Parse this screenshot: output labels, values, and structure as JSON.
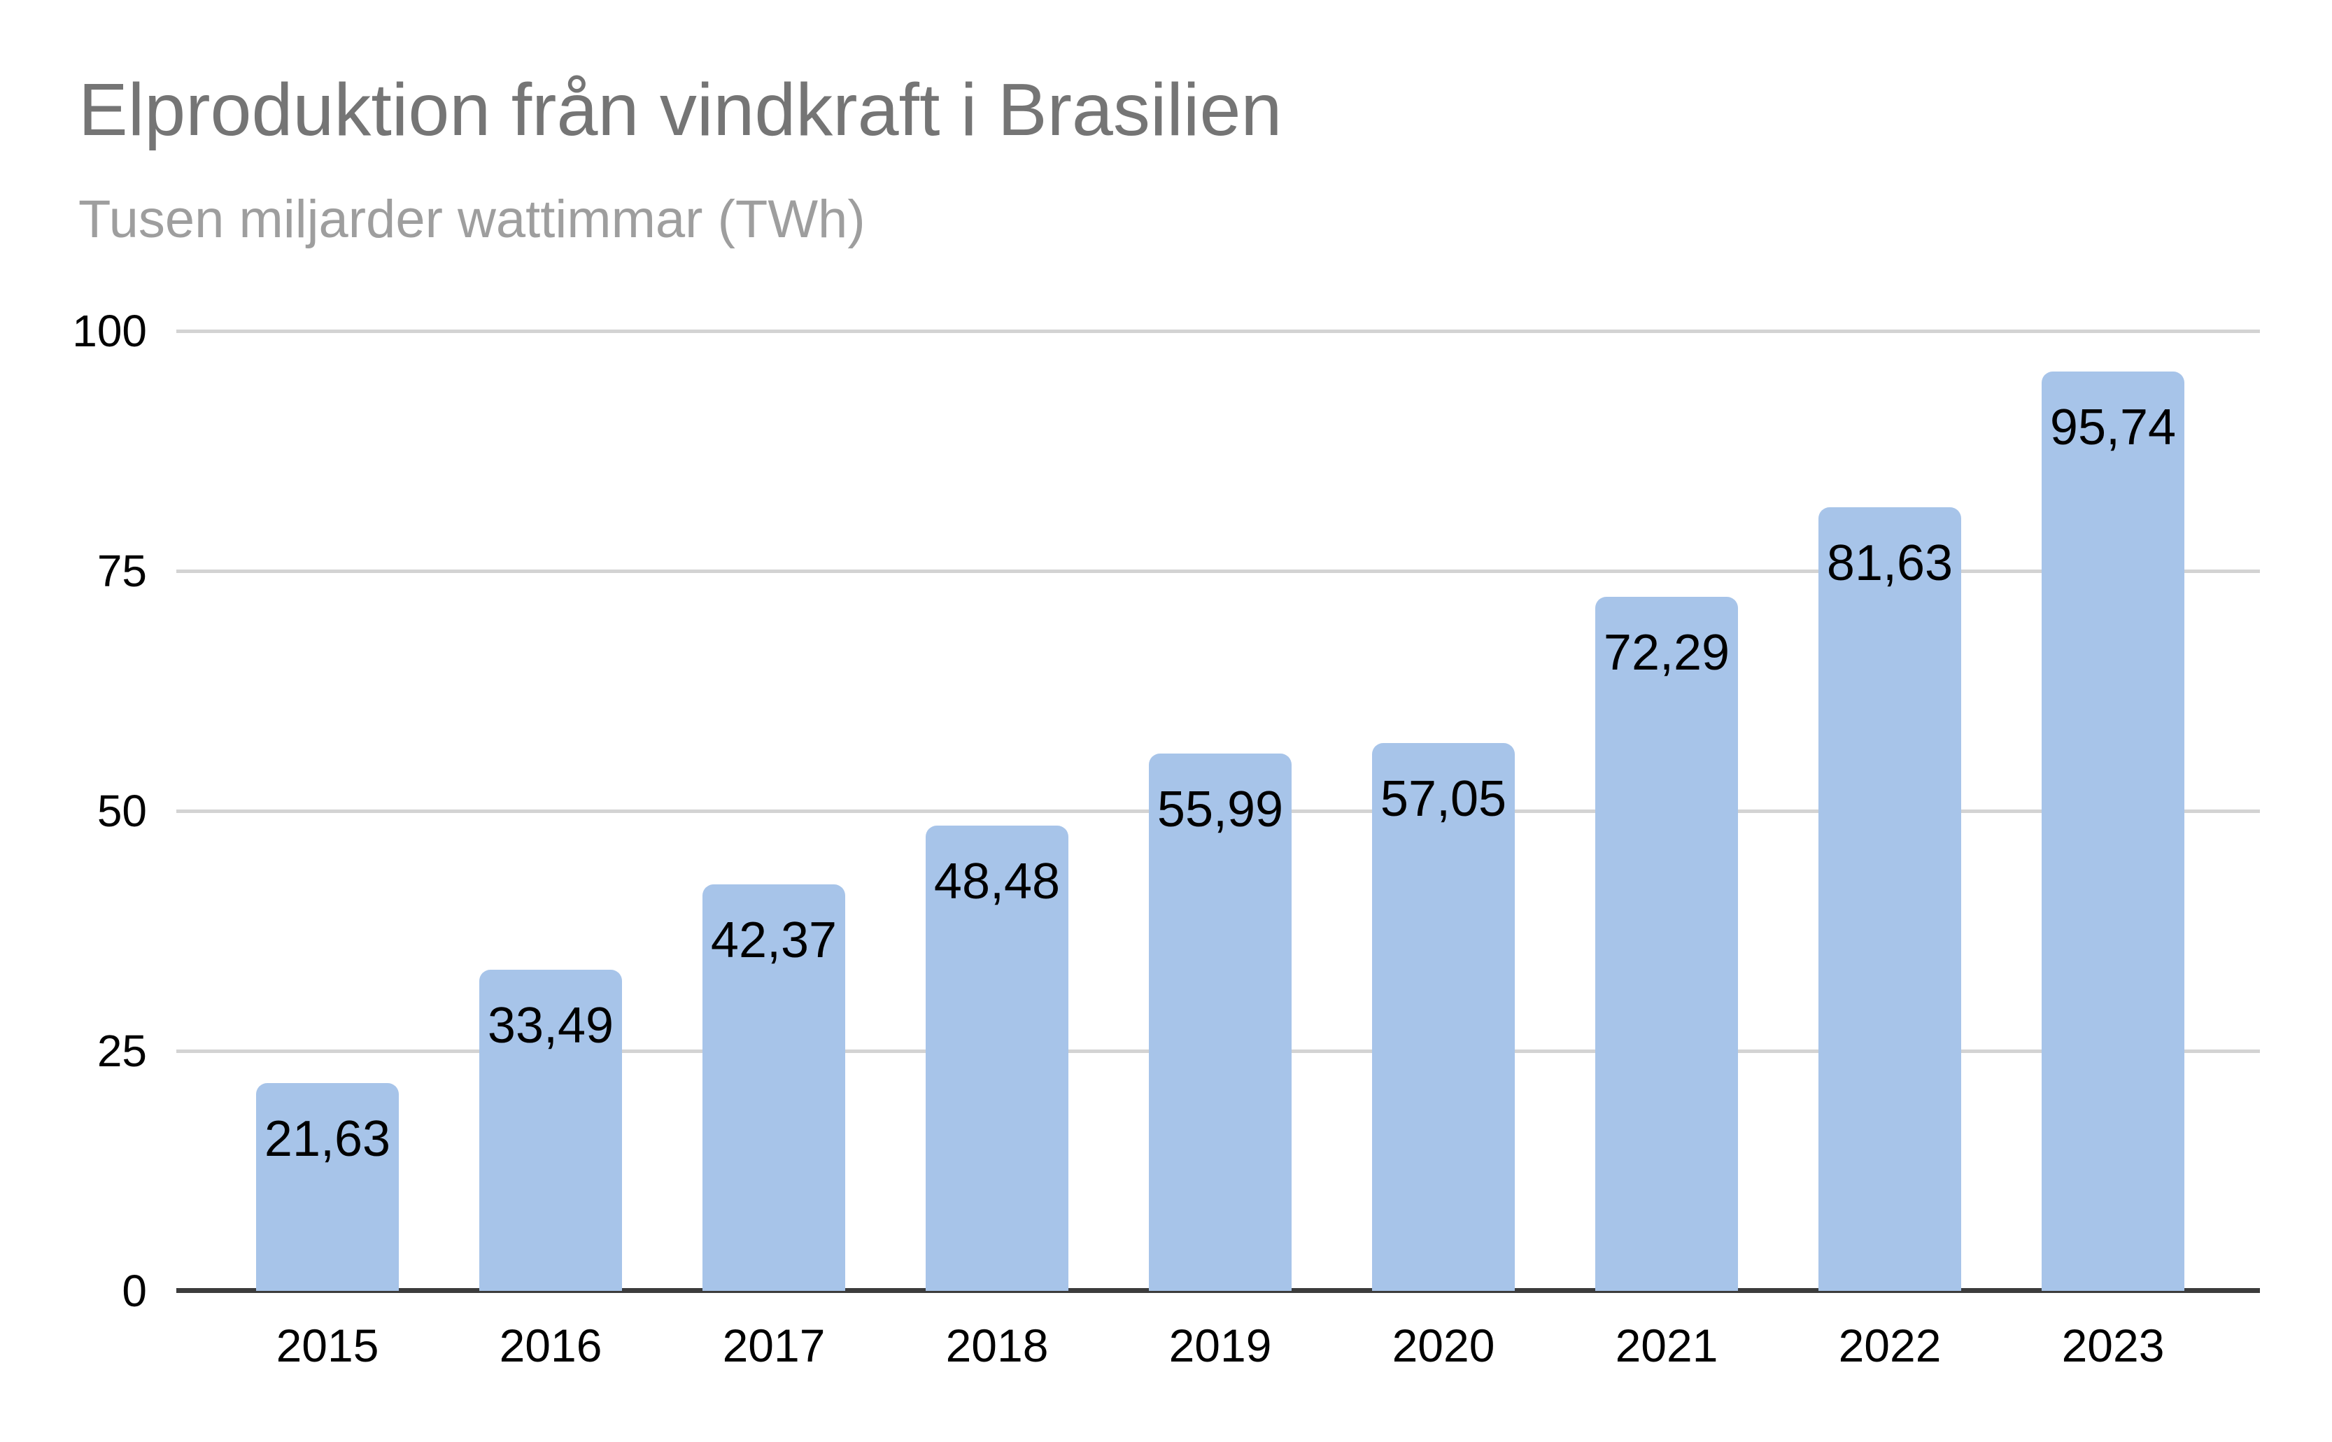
{
  "header": {
    "title": "Elproduktion från vindkraft i Brasilien",
    "subtitle": "Tusen miljarder wattimmar (TWh)"
  },
  "chart_data": {
    "type": "bar",
    "title": "Elproduktion från vindkraft i Brasilien",
    "subtitle": "Tusen miljarder wattimmar (TWh)",
    "categories": [
      "2015",
      "2016",
      "2017",
      "2018",
      "2019",
      "2020",
      "2021",
      "2022",
      "2023"
    ],
    "values": [
      21.63,
      33.49,
      42.37,
      48.48,
      55.99,
      57.05,
      72.29,
      81.63,
      95.74
    ],
    "value_labels": [
      "21,63",
      "33,49",
      "42,37",
      "48,48",
      "55,99",
      "57,05",
      "72,29",
      "81,63",
      "95,74"
    ],
    "xlabel": "",
    "ylabel": "",
    "ylim": [
      0,
      100
    ],
    "y_ticks": [
      0,
      25,
      50,
      75,
      100
    ],
    "y_tick_labels": [
      "0",
      "25",
      "50",
      "75",
      "100"
    ],
    "grid": "horizontal",
    "legend": "none",
    "colors": {
      "bar": "#a7c4e9",
      "gridline": "#d3d3d3",
      "axis_line": "#3c3c3c",
      "title": "#757575",
      "subtitle": "#9e9e9e",
      "tick_label": "#000000",
      "value_label": "#000000",
      "background": "#ffffff"
    }
  }
}
